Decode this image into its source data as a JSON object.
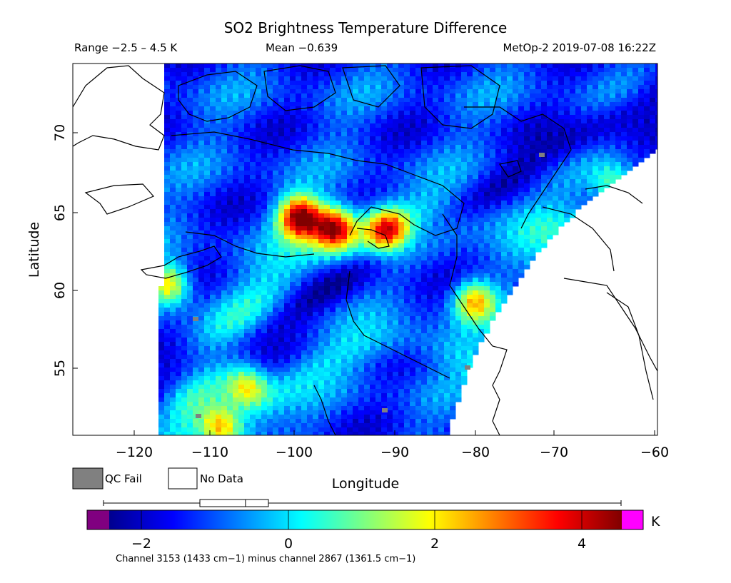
{
  "title": "SO2 Brightness Temperature Difference",
  "range_text": "Range −2.5 – 4.5 K",
  "mean_text": "Mean −0.639",
  "satellite_text": "MetOp-2 2019-07-08 16:22Z",
  "ylabel": "Latitude",
  "xlabel": "Longitude",
  "lon_ticks": [
    "−120",
    "−110",
    "−100",
    "−90",
    "−80",
    "−70",
    "−60"
  ],
  "lat_ticks": [
    "70",
    "65",
    "60",
    "55"
  ],
  "legend": {
    "qc_fail": "QC Fail",
    "no_data": "No Data"
  },
  "colorbar": {
    "unit": "K",
    "ticks": [
      "−2",
      "0",
      "2",
      "4"
    ],
    "range_min": -2.5,
    "range_max": 4.5,
    "mean": -0.639,
    "under_color": "#800080",
    "over_color": "#ff00ff",
    "qc_fail_color": "#808080",
    "no_data_color": "#ffffff"
  },
  "footnote": "Channel 3153 (1433 cm−1) minus channel 2867 (1361.5 cm−1)",
  "chart_data": {
    "type": "heatmap",
    "x_range": [
      -127,
      -60
    ],
    "y_range": [
      50.5,
      74
    ],
    "value_range": [
      -2.5,
      4.5
    ],
    "hotspots": [
      {
        "lon": -101,
        "lat": 64.3,
        "value": 4.3
      },
      {
        "lon": -97,
        "lat": 63.6,
        "value": 3.8
      },
      {
        "lon": -91,
        "lat": 63.5,
        "value": 3.0
      },
      {
        "lon": -116,
        "lat": 60,
        "value": 2.4
      },
      {
        "lon": -107,
        "lat": 53.5,
        "value": 1.8
      },
      {
        "lon": -110,
        "lat": 51,
        "value": 2.5
      },
      {
        "lon": -81,
        "lat": 59,
        "value": 2.2
      },
      {
        "lon": -65,
        "lat": 66.3,
        "value": 0.8
      }
    ]
  }
}
